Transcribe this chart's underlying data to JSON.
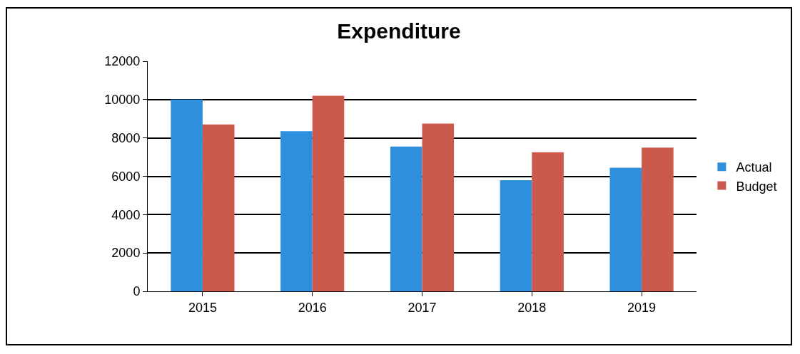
{
  "chart_data": {
    "type": "bar",
    "title": "Expenditure",
    "categories": [
      "2015",
      "2016",
      "2017",
      "2018",
      "2019"
    ],
    "series": [
      {
        "name": "Actual",
        "color": "#2e8fdc",
        "values": [
          10000,
          8350,
          7550,
          5800,
          6450
        ]
      },
      {
        "name": "Budget",
        "color": "#cc5a4c",
        "values": [
          8700,
          10200,
          8750,
          7250,
          7500
        ]
      }
    ],
    "ylim": [
      0,
      12000
    ],
    "yticks": [
      0,
      2000,
      4000,
      6000,
      8000,
      10000,
      12000
    ],
    "grid": "y",
    "legend": "right"
  }
}
